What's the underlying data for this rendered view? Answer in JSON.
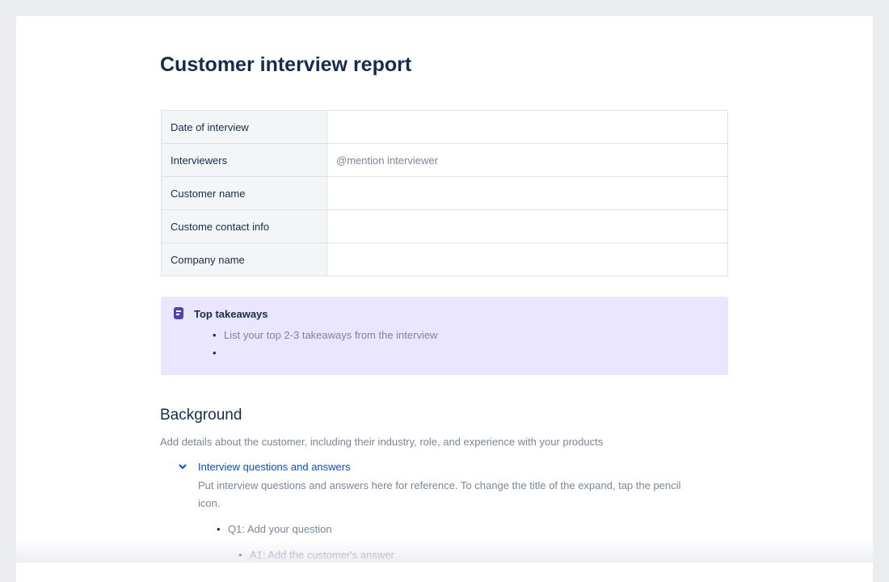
{
  "title": "Customer interview report",
  "table": [
    {
      "label": "Date of interview",
      "value": ""
    },
    {
      "label": "Interviewers",
      "value": "@mention interviewer"
    },
    {
      "label": "Customer name",
      "value": ""
    },
    {
      "label": "Custome contact info",
      "value": ""
    },
    {
      "label": "Company name",
      "value": ""
    }
  ],
  "panel": {
    "title": "Top takeaways",
    "icon": "note-icon",
    "items": [
      "List your top 2-3 takeaways from the interview",
      ""
    ]
  },
  "background": {
    "heading": "Background",
    "text": "Add details about the customer, including their industry, role, and experience with your products"
  },
  "expand": {
    "title": "Interview questions and answers",
    "text": "Put interview questions and answers here for reference. To change the title of the expand, tap the pencil icon.",
    "q1": "Q1: Add your question",
    "a1": "A1: Add the customer's answer"
  }
}
